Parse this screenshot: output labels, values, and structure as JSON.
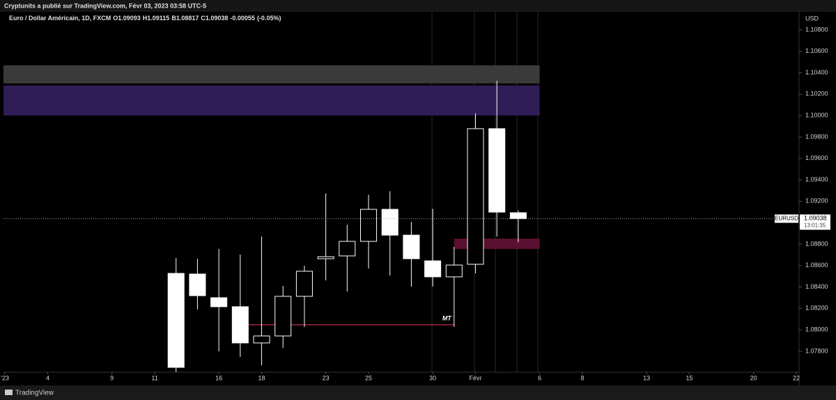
{
  "header": {
    "text": "Cryptunits a publié sur TradingView.com, Févr 03, 2023 03:58 UTC-5"
  },
  "footer": {
    "brand": "TradingView"
  },
  "chart_data": {
    "type": "candlestick",
    "symbol": "Euro / Dollar Américain, 1D, FXCM",
    "ohlc_labels": [
      "O",
      "H",
      "B",
      "C"
    ],
    "change": -0.00055,
    "change_percent": -0.05,
    "change_percent_label": "(-0.05%)",
    "currency": "USD",
    "x": [
      1,
      2,
      3,
      4,
      5,
      6,
      7,
      8,
      9,
      10,
      11,
      12,
      13,
      14,
      15,
      16,
      17
    ],
    "open": [
      1.08527,
      1.08521,
      1.083,
      1.08216,
      1.07878,
      1.07943,
      1.08313,
      1.08664,
      1.0869,
      1.08826,
      1.09125,
      1.08884,
      1.08644,
      1.08495,
      1.08612,
      1.09878,
      1.09093
    ],
    "high": [
      1.0867,
      1.08664,
      1.08755,
      1.08703,
      1.08871,
      1.0841,
      1.08599,
      1.09274,
      1.08982,
      1.09261,
      1.09294,
      1.09008,
      1.09131,
      1.08774,
      1.10021,
      1.10326,
      1.09115
    ],
    "low": [
      1.076,
      1.0819,
      1.078,
      1.07748,
      1.0767,
      1.07832,
      1.08027,
      1.08462,
      1.08358,
      1.08573,
      1.08508,
      1.08404,
      1.08404,
      1.08027,
      1.08527,
      1.08871,
      1.08817
    ],
    "close": [
      1.0765,
      1.08319,
      1.08216,
      1.07878,
      1.07943,
      1.08313,
      1.08547,
      1.08683,
      1.08826,
      1.09125,
      1.08884,
      1.08664,
      1.08495,
      1.08605,
      1.09878,
      1.09099,
      1.09038
    ],
    "up_color": "#000000",
    "down_color": "#ffffff",
    "xlim": [
      -7.07,
      30.13
    ],
    "xticks": [
      {
        "value": -7,
        "label": "'23"
      },
      {
        "value": -5,
        "label": "4"
      },
      {
        "value": -2,
        "label": "9"
      },
      {
        "value": 0,
        "label": "11"
      },
      {
        "value": 3,
        "label": "16"
      },
      {
        "value": 5,
        "label": "18"
      },
      {
        "value": 8,
        "label": "23"
      },
      {
        "value": 10,
        "label": "25"
      },
      {
        "value": 13,
        "label": "30"
      },
      {
        "value": 15,
        "label": "Févr"
      },
      {
        "value": 18,
        "label": "6"
      },
      {
        "value": 20,
        "label": "8"
      },
      {
        "value": 23,
        "label": "13"
      },
      {
        "value": 25,
        "label": "15"
      },
      {
        "value": 28,
        "label": "20"
      },
      {
        "value": 30,
        "label": "22"
      }
    ],
    "ylim": [
      1.07605,
      1.10949
    ],
    "yticks": [
      {
        "value": 1.078,
        "label": "1.07800"
      },
      {
        "value": 1.08,
        "label": "1.08000"
      },
      {
        "value": 1.082,
        "label": "1.08200"
      },
      {
        "value": 1.084,
        "label": "1.08400"
      },
      {
        "value": 1.086,
        "label": "1.08600"
      },
      {
        "value": 1.088,
        "label": "1.08800"
      },
      {
        "value": 1.09,
        "label": "1.09000"
      },
      {
        "value": 1.092,
        "label": "1.09200"
      },
      {
        "value": 1.094,
        "label": "1.09400"
      },
      {
        "value": 1.096,
        "label": "1.09600"
      },
      {
        "value": 1.098,
        "label": "1.09800"
      },
      {
        "value": 1.1,
        "label": "1.10000"
      },
      {
        "value": 1.102,
        "label": "1.10200"
      },
      {
        "value": 1.104,
        "label": "1.10400"
      },
      {
        "value": 1.106,
        "label": "1.10600"
      },
      {
        "value": 1.108,
        "label": "1.10800"
      }
    ],
    "last_price": {
      "symbol": "EURUSD",
      "countdown": "13:01:35"
    },
    "zones": [
      {
        "color": "#3a3a3a",
        "x0": -7.07,
        "x1": 18,
        "top": 1.10469,
        "bottom": 1.103
      },
      {
        "color": "#2e1d56",
        "x0": -7.07,
        "x1": 18,
        "top": 1.10281,
        "bottom": 1.10001
      },
      {
        "color": "#5a1030",
        "x0": 14,
        "x1": 18,
        "top": 1.08852,
        "bottom": 1.08755
      }
    ],
    "lines": [
      {
        "x0": 4.4,
        "x1": 14,
        "value": 1.08047,
        "color": "#a3243f",
        "label": "MT"
      }
    ]
  }
}
